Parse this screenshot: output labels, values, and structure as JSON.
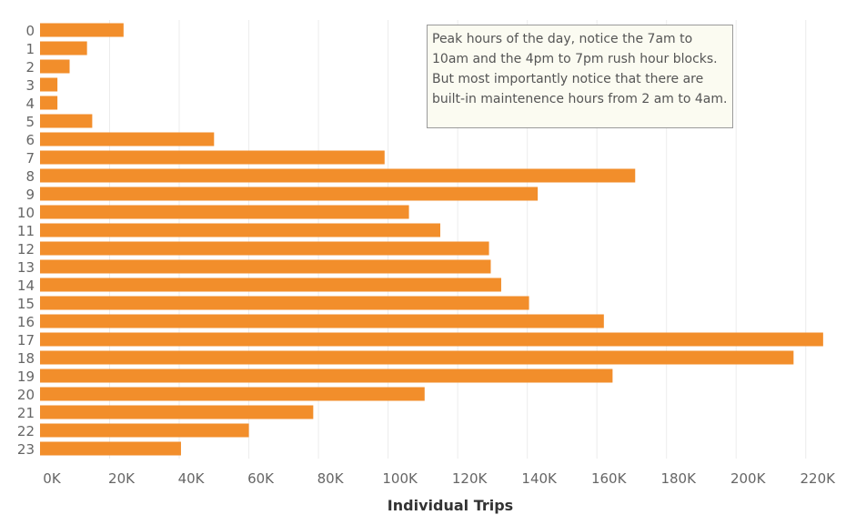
{
  "chart_data": {
    "type": "bar",
    "orientation": "horizontal",
    "categories": [
      "0",
      "1",
      "2",
      "3",
      "4",
      "5",
      "6",
      "7",
      "8",
      "9",
      "10",
      "11",
      "12",
      "13",
      "14",
      "15",
      "16",
      "17",
      "18",
      "19",
      "20",
      "21",
      "22",
      "23"
    ],
    "values": [
      24000,
      13500,
      8500,
      5000,
      5000,
      15000,
      50000,
      99000,
      171000,
      143000,
      106000,
      115000,
      129000,
      129500,
      132500,
      140500,
      162000,
      225000,
      216500,
      164500,
      110500,
      78500,
      60000,
      40500
    ],
    "xlabel": "Individual Trips",
    "ylabel": "",
    "xlim": [
      0,
      230000
    ],
    "x_ticks": [
      0,
      20000,
      40000,
      60000,
      80000,
      100000,
      120000,
      140000,
      160000,
      180000,
      200000,
      220000
    ],
    "x_tick_labels": [
      "0K",
      "20K",
      "40K",
      "60K",
      "80K",
      "100K",
      "120K",
      "140K",
      "160K",
      "180K",
      "200K",
      "220K"
    ],
    "grid": true,
    "bar_color": "#f28e2b",
    "annotation": "Peak hours of the day, notice the 7am to 10am and the 4pm to 7pm rush hour blocks. But most importantly notice that there are built-in maintenence hours from 2 am to 4am."
  }
}
